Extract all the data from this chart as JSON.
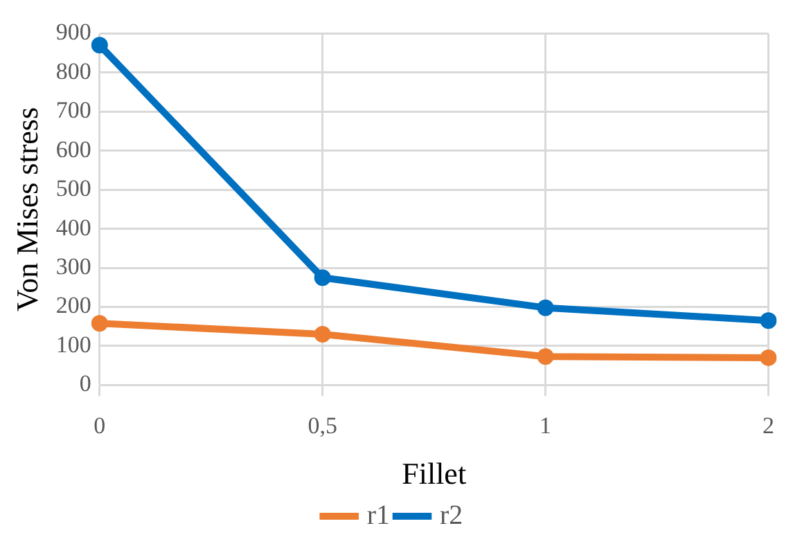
{
  "chart_data": {
    "type": "line",
    "xlabel": "Fillet",
    "ylabel": "Von Mises stress",
    "categories": [
      "0",
      "0,5",
      "1",
      "2"
    ],
    "series": [
      {
        "name": "r1",
        "color": "#ed7d31",
        "values": [
          158,
          130,
          73,
          70
        ]
      },
      {
        "name": "r2",
        "color": "#0070c0",
        "values": [
          870,
          275,
          198,
          165
        ]
      }
    ],
    "ylim": [
      0,
      900
    ],
    "yticks": [
      0,
      100,
      200,
      300,
      400,
      500,
      600,
      700,
      800,
      900
    ],
    "grid": true,
    "legend": "bottom",
    "marker": "circle",
    "line_style": "solid"
  }
}
